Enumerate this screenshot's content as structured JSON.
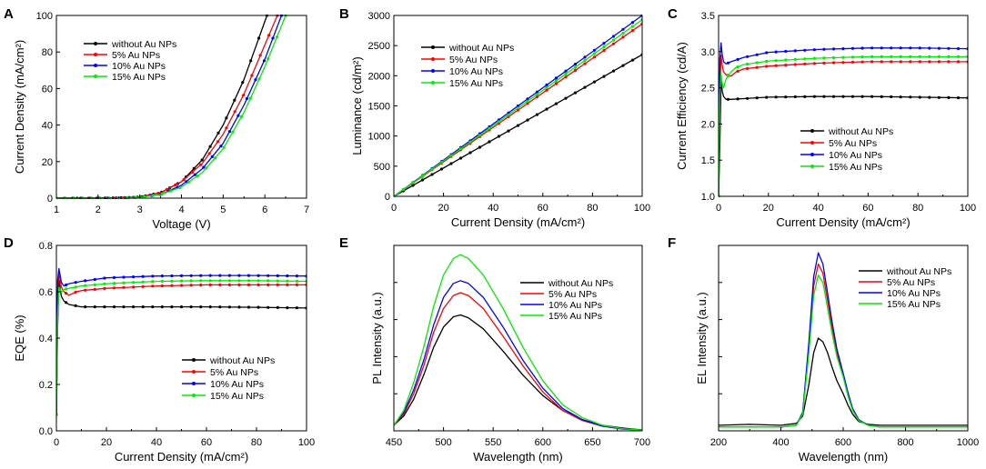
{
  "colors": {
    "without": "#000000",
    "five": "#ff0000",
    "ten": "#0000ff",
    "fifteen": "#00ee00"
  },
  "chart_data": [
    {
      "id": "A",
      "letter": "A",
      "type": "line",
      "xlabel": "Voltage (V)",
      "ylabel": "Current Density (mA/cm²)",
      "xlim": [
        1,
        7
      ],
      "ylim": [
        0,
        100
      ],
      "xticks": [
        1,
        2,
        3,
        4,
        5,
        6,
        7
      ],
      "yticks": [
        0,
        20,
        40,
        60,
        80,
        100
      ],
      "markers": true,
      "legend_position": "top-left",
      "series": [
        {
          "name": "without  Au NPs",
          "color_key": "without",
          "x": [
            1,
            2,
            2.5,
            3,
            3.5,
            4,
            4.5,
            5,
            5.5,
            5.8,
            6.05
          ],
          "y": [
            0,
            0,
            0.2,
            0.6,
            3,
            9,
            21,
            40,
            65,
            84,
            100
          ]
        },
        {
          "name": "5% Au NPs",
          "color_key": "five",
          "x": [
            1,
            2,
            2.5,
            3,
            3.5,
            4,
            4.5,
            5,
            5.5,
            6,
            6.3
          ],
          "y": [
            0,
            0,
            0.2,
            0.6,
            3,
            9,
            19,
            35,
            57,
            84,
            100
          ]
        },
        {
          "name": "10% Au NPs",
          "color_key": "ten",
          "x": [
            1,
            2,
            2.5,
            3,
            3.5,
            4,
            4.5,
            5,
            5.5,
            6,
            6.4
          ],
          "y": [
            0,
            0,
            0.1,
            0.5,
            2,
            7,
            16,
            30,
            51,
            76,
            100
          ]
        },
        {
          "name": "15% Au NPs",
          "color_key": "fifteen",
          "x": [
            1,
            2,
            2.5,
            3,
            3.5,
            4,
            4.5,
            5,
            5.5,
            6,
            6.5
          ],
          "y": [
            0,
            0,
            0.1,
            0.4,
            2,
            6,
            14,
            27,
            47,
            72,
            100
          ]
        }
      ]
    },
    {
      "id": "B",
      "letter": "B",
      "type": "line",
      "xlabel": "Current Density (mA/cm²)",
      "ylabel": "Luminance (cd/m²)",
      "xlim": [
        0,
        100
      ],
      "ylim": [
        0,
        3000
      ],
      "xticks": [
        0,
        20,
        40,
        60,
        80,
        100
      ],
      "yticks": [
        0,
        500,
        1000,
        1500,
        2000,
        2500,
        3000
      ],
      "markers": true,
      "legend_position": "top-left",
      "series": [
        {
          "name": "without  Au NPs",
          "color_key": "without",
          "x": [
            0,
            100
          ],
          "y": [
            0,
            2350
          ]
        },
        {
          "name": "5% Au NPs",
          "color_key": "five",
          "x": [
            0,
            100
          ],
          "y": [
            0,
            2860
          ]
        },
        {
          "name": "10% Au NPs",
          "color_key": "ten",
          "x": [
            0,
            100
          ],
          "y": [
            0,
            3000
          ]
        },
        {
          "name": "15% Au NPs",
          "color_key": "fifteen",
          "x": [
            0,
            100
          ],
          "y": [
            0,
            2930
          ]
        }
      ]
    },
    {
      "id": "C",
      "letter": "C",
      "type": "line",
      "xlabel": "Current Density (mA/cm²)",
      "ylabel": "Current Efficiency (cd/A)",
      "xlim": [
        0,
        100
      ],
      "ylim": [
        1.0,
        3.5
      ],
      "xticks": [
        0,
        20,
        40,
        60,
        80,
        100
      ],
      "yticks": [
        1.0,
        1.5,
        2.0,
        2.5,
        3.0,
        3.5
      ],
      "markers": true,
      "legend_position": "bottom-right",
      "series": [
        {
          "name": "without  Au NPs",
          "color_key": "without",
          "x": [
            0,
            0.5,
            1,
            1.5,
            2,
            3,
            5,
            10,
            20,
            40,
            60,
            80,
            100
          ],
          "y": [
            1.0,
            1.7,
            2.6,
            2.45,
            2.38,
            2.34,
            2.34,
            2.35,
            2.37,
            2.38,
            2.38,
            2.37,
            2.36
          ]
        },
        {
          "name": "5% Au NPs",
          "color_key": "five",
          "x": [
            0,
            0.5,
            1,
            1.5,
            2,
            3,
            5,
            7,
            10,
            20,
            40,
            60,
            80,
            100
          ],
          "y": [
            1.0,
            2.5,
            2.95,
            2.8,
            2.72,
            2.68,
            2.66,
            2.72,
            2.76,
            2.8,
            2.84,
            2.86,
            2.86,
            2.86
          ]
        },
        {
          "name": "10% Au NPs",
          "color_key": "ten",
          "x": [
            0,
            0.5,
            1,
            1.5,
            2,
            3,
            5,
            10,
            20,
            40,
            60,
            80,
            100
          ],
          "y": [
            1.0,
            2.9,
            3.12,
            2.95,
            2.86,
            2.83,
            2.86,
            2.92,
            2.99,
            3.03,
            3.05,
            3.05,
            3.04
          ]
        },
        {
          "name": "15% Au NPs",
          "color_key": "fifteen",
          "x": [
            0,
            0.5,
            1,
            1.5,
            2,
            3,
            5,
            7,
            10,
            20,
            40,
            60,
            80,
            100
          ],
          "y": [
            1.0,
            2.4,
            2.7,
            2.55,
            2.5,
            2.62,
            2.72,
            2.78,
            2.82,
            2.87,
            2.91,
            2.93,
            2.93,
            2.93
          ]
        }
      ]
    },
    {
      "id": "D",
      "letter": "D",
      "type": "line",
      "xlabel": "Current Density (mA/cm²)",
      "ylabel": "EQE (%)",
      "xlim": [
        0,
        100
      ],
      "ylim": [
        0.0,
        0.8
      ],
      "xticks": [
        0,
        20,
        40,
        60,
        80,
        100
      ],
      "yticks": [
        0.0,
        0.2,
        0.4,
        0.6,
        0.8
      ],
      "markers": true,
      "legend_position": "bottom-right",
      "series": [
        {
          "name": "without  Au NPs",
          "color_key": "without",
          "x": [
            0,
            0.5,
            1,
            2,
            3,
            5,
            10,
            20,
            40,
            60,
            80,
            100
          ],
          "y": [
            0.07,
            0.45,
            0.65,
            0.58,
            0.56,
            0.545,
            0.535,
            0.535,
            0.535,
            0.535,
            0.533,
            0.53
          ]
        },
        {
          "name": "5% Au NPs",
          "color_key": "five",
          "x": [
            0,
            0.5,
            1,
            2,
            3,
            5,
            8,
            10,
            20,
            40,
            60,
            80,
            100
          ],
          "y": [
            0.07,
            0.6,
            0.68,
            0.62,
            0.6,
            0.585,
            0.6,
            0.605,
            0.615,
            0.625,
            0.63,
            0.63,
            0.63
          ]
        },
        {
          "name": "10% Au NPs",
          "color_key": "ten",
          "x": [
            0,
            0.5,
            1,
            2,
            3,
            5,
            10,
            20,
            40,
            60,
            80,
            100
          ],
          "y": [
            0.07,
            0.65,
            0.7,
            0.64,
            0.625,
            0.635,
            0.645,
            0.66,
            0.668,
            0.67,
            0.67,
            0.668
          ]
        },
        {
          "name": "15% Au NPs",
          "color_key": "fifteen",
          "x": [
            0,
            0.5,
            1,
            2,
            3,
            5,
            10,
            20,
            40,
            60,
            80,
            100
          ],
          "y": [
            0.07,
            0.5,
            0.62,
            0.6,
            0.61,
            0.615,
            0.625,
            0.635,
            0.645,
            0.648,
            0.648,
            0.645
          ]
        }
      ]
    },
    {
      "id": "E",
      "letter": "E",
      "type": "line",
      "xlabel": "Wavelength (nm)",
      "ylabel": "PL Intensity (a.u.)",
      "xlim": [
        450,
        700
      ],
      "ylim": [
        0,
        1.0
      ],
      "xticks": [
        450,
        500,
        550,
        600,
        650,
        700
      ],
      "yticks": [],
      "markers": false,
      "legend_position": "top-right",
      "series": [
        {
          "name": "without  Au NPs",
          "color_key": "without",
          "x": [
            450,
            460,
            470,
            480,
            490,
            500,
            510,
            517,
            525,
            540,
            560,
            580,
            600,
            620,
            640,
            660,
            680,
            700
          ],
          "y": [
            0.03,
            0.08,
            0.17,
            0.3,
            0.45,
            0.56,
            0.615,
            0.625,
            0.61,
            0.55,
            0.43,
            0.3,
            0.19,
            0.11,
            0.06,
            0.03,
            0.015,
            0.005
          ]
        },
        {
          "name": "5% Au NPs",
          "color_key": "five",
          "x": [
            450,
            460,
            470,
            480,
            490,
            500,
            510,
            517,
            525,
            540,
            560,
            580,
            600,
            620,
            640,
            660,
            680,
            700
          ],
          "y": [
            0.03,
            0.09,
            0.2,
            0.35,
            0.53,
            0.66,
            0.73,
            0.745,
            0.73,
            0.66,
            0.51,
            0.35,
            0.21,
            0.11,
            0.055,
            0.025,
            0.01,
            0.004
          ]
        },
        {
          "name": "10% Au NPs",
          "color_key": "ten",
          "x": [
            450,
            460,
            470,
            480,
            490,
            500,
            510,
            517,
            525,
            540,
            560,
            580,
            600,
            620,
            640,
            660,
            680,
            700
          ],
          "y": [
            0.03,
            0.1,
            0.22,
            0.38,
            0.57,
            0.72,
            0.795,
            0.81,
            0.795,
            0.72,
            0.56,
            0.38,
            0.23,
            0.12,
            0.06,
            0.025,
            0.01,
            0.004
          ]
        },
        {
          "name": "15% Au NPs",
          "color_key": "fifteen",
          "x": [
            450,
            460,
            470,
            480,
            490,
            500,
            510,
            517,
            525,
            540,
            560,
            580,
            600,
            620,
            640,
            660,
            680,
            700
          ],
          "y": [
            0.03,
            0.11,
            0.26,
            0.45,
            0.67,
            0.84,
            0.93,
            0.95,
            0.93,
            0.84,
            0.66,
            0.45,
            0.27,
            0.14,
            0.07,
            0.03,
            0.012,
            0.004
          ]
        }
      ]
    },
    {
      "id": "F",
      "letter": "F",
      "type": "line",
      "xlabel": "Wavelength (nm)",
      "ylabel": "EL Intensity (a.u.)",
      "xlim": [
        200,
        1000
      ],
      "ylim": [
        0,
        1.0
      ],
      "xticks": [
        200,
        400,
        600,
        800,
        1000
      ],
      "yticks": [],
      "markers": false,
      "legend_position": "top-right",
      "series": [
        {
          "name": "without  Au NPs",
          "color_key": "without",
          "x": [
            200,
            300,
            400,
            450,
            470,
            490,
            505,
            520,
            535,
            550,
            565,
            580,
            600,
            615,
            630,
            650,
            680,
            720,
            800,
            1000
          ],
          "y": [
            0.03,
            0.035,
            0.03,
            0.04,
            0.08,
            0.25,
            0.42,
            0.5,
            0.48,
            0.42,
            0.34,
            0.27,
            0.2,
            0.14,
            0.09,
            0.05,
            0.035,
            0.03,
            0.03,
            0.03
          ]
        },
        {
          "name": "5% Au NPs",
          "color_key": "five",
          "x": [
            200,
            300,
            400,
            450,
            470,
            490,
            505,
            520,
            535,
            550,
            565,
            580,
            600,
            615,
            630,
            650,
            680,
            720,
            800,
            1000
          ],
          "y": [
            0.02,
            0.02,
            0.02,
            0.03,
            0.1,
            0.45,
            0.78,
            0.9,
            0.85,
            0.7,
            0.55,
            0.42,
            0.3,
            0.2,
            0.12,
            0.06,
            0.03,
            0.02,
            0.02,
            0.02
          ]
        },
        {
          "name": "10% Au NPs",
          "color_key": "ten",
          "x": [
            200,
            300,
            400,
            450,
            470,
            490,
            505,
            520,
            535,
            550,
            565,
            580,
            600,
            615,
            630,
            650,
            680,
            720,
            800,
            1000
          ],
          "y": [
            0.02,
            0.02,
            0.02,
            0.03,
            0.1,
            0.48,
            0.83,
            0.96,
            0.9,
            0.74,
            0.58,
            0.44,
            0.31,
            0.21,
            0.12,
            0.06,
            0.03,
            0.02,
            0.02,
            0.02
          ]
        },
        {
          "name": "15% Au NPs",
          "color_key": "fifteen",
          "x": [
            200,
            300,
            400,
            450,
            470,
            490,
            505,
            520,
            535,
            550,
            565,
            580,
            600,
            615,
            630,
            650,
            680,
            720,
            800,
            1000
          ],
          "y": [
            0.02,
            0.02,
            0.02,
            0.03,
            0.09,
            0.42,
            0.73,
            0.84,
            0.8,
            0.66,
            0.52,
            0.4,
            0.29,
            0.19,
            0.11,
            0.055,
            0.03,
            0.02,
            0.02,
            0.02
          ]
        }
      ]
    }
  ]
}
